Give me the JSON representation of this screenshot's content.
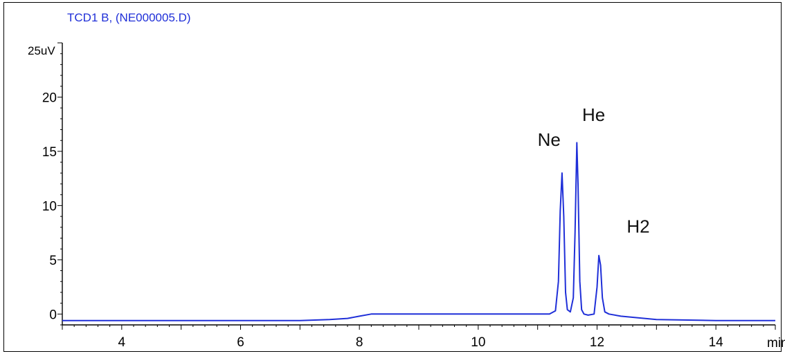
{
  "chart_data": {
    "type": "line",
    "title": "TCD1 B, (NE000005.D)",
    "ylabel": "25uV",
    "xlabel": "min",
    "xlim": [
      3,
      15
    ],
    "ylim": [
      -1,
      25
    ],
    "xticks": [
      "4",
      "6",
      "8",
      "10",
      "12",
      "14"
    ],
    "xtick_values": [
      4,
      6,
      8,
      10,
      12,
      14
    ],
    "yticks": [
      "0",
      "5",
      "10",
      "15",
      "20"
    ],
    "ytick_values": [
      0,
      5,
      10,
      15,
      20
    ],
    "series": [
      {
        "color": "#1f2fd8",
        "x": [
          3.0,
          3.5,
          4.0,
          5.0,
          6.0,
          6.5,
          7.0,
          7.5,
          7.8,
          8.0,
          8.2,
          8.5,
          9.0,
          10.0,
          10.5,
          11.0,
          11.2,
          11.3,
          11.35,
          11.38,
          11.41,
          11.44,
          11.47,
          11.5,
          11.55,
          11.6,
          11.63,
          11.66,
          11.68,
          11.71,
          11.74,
          11.78,
          11.85,
          11.95,
          12.0,
          12.03,
          12.06,
          12.09,
          12.13,
          12.2,
          12.4,
          13.0,
          14.0,
          14.5,
          15.0
        ],
        "y": [
          -0.6,
          -0.6,
          -0.6,
          -0.6,
          -0.6,
          -0.6,
          -0.6,
          -0.5,
          -0.4,
          -0.2,
          0.0,
          0.0,
          0.0,
          0.0,
          0.0,
          0.0,
          0.0,
          0.3,
          3.0,
          9.5,
          13.0,
          9.0,
          2.0,
          0.4,
          0.2,
          1.5,
          7.5,
          15.8,
          12.0,
          3.0,
          0.4,
          0.0,
          -0.1,
          0.0,
          2.5,
          5.4,
          4.5,
          1.5,
          0.2,
          0.0,
          -0.2,
          -0.5,
          -0.6,
          -0.6,
          -0.6
        ]
      }
    ],
    "annotations": [
      {
        "text": "Ne",
        "x": 11.0,
        "y": 15.5
      },
      {
        "text": "He",
        "x": 11.75,
        "y": 17.8
      },
      {
        "text": "H2",
        "x": 12.5,
        "y": 7.5
      }
    ],
    "grid": false
  }
}
